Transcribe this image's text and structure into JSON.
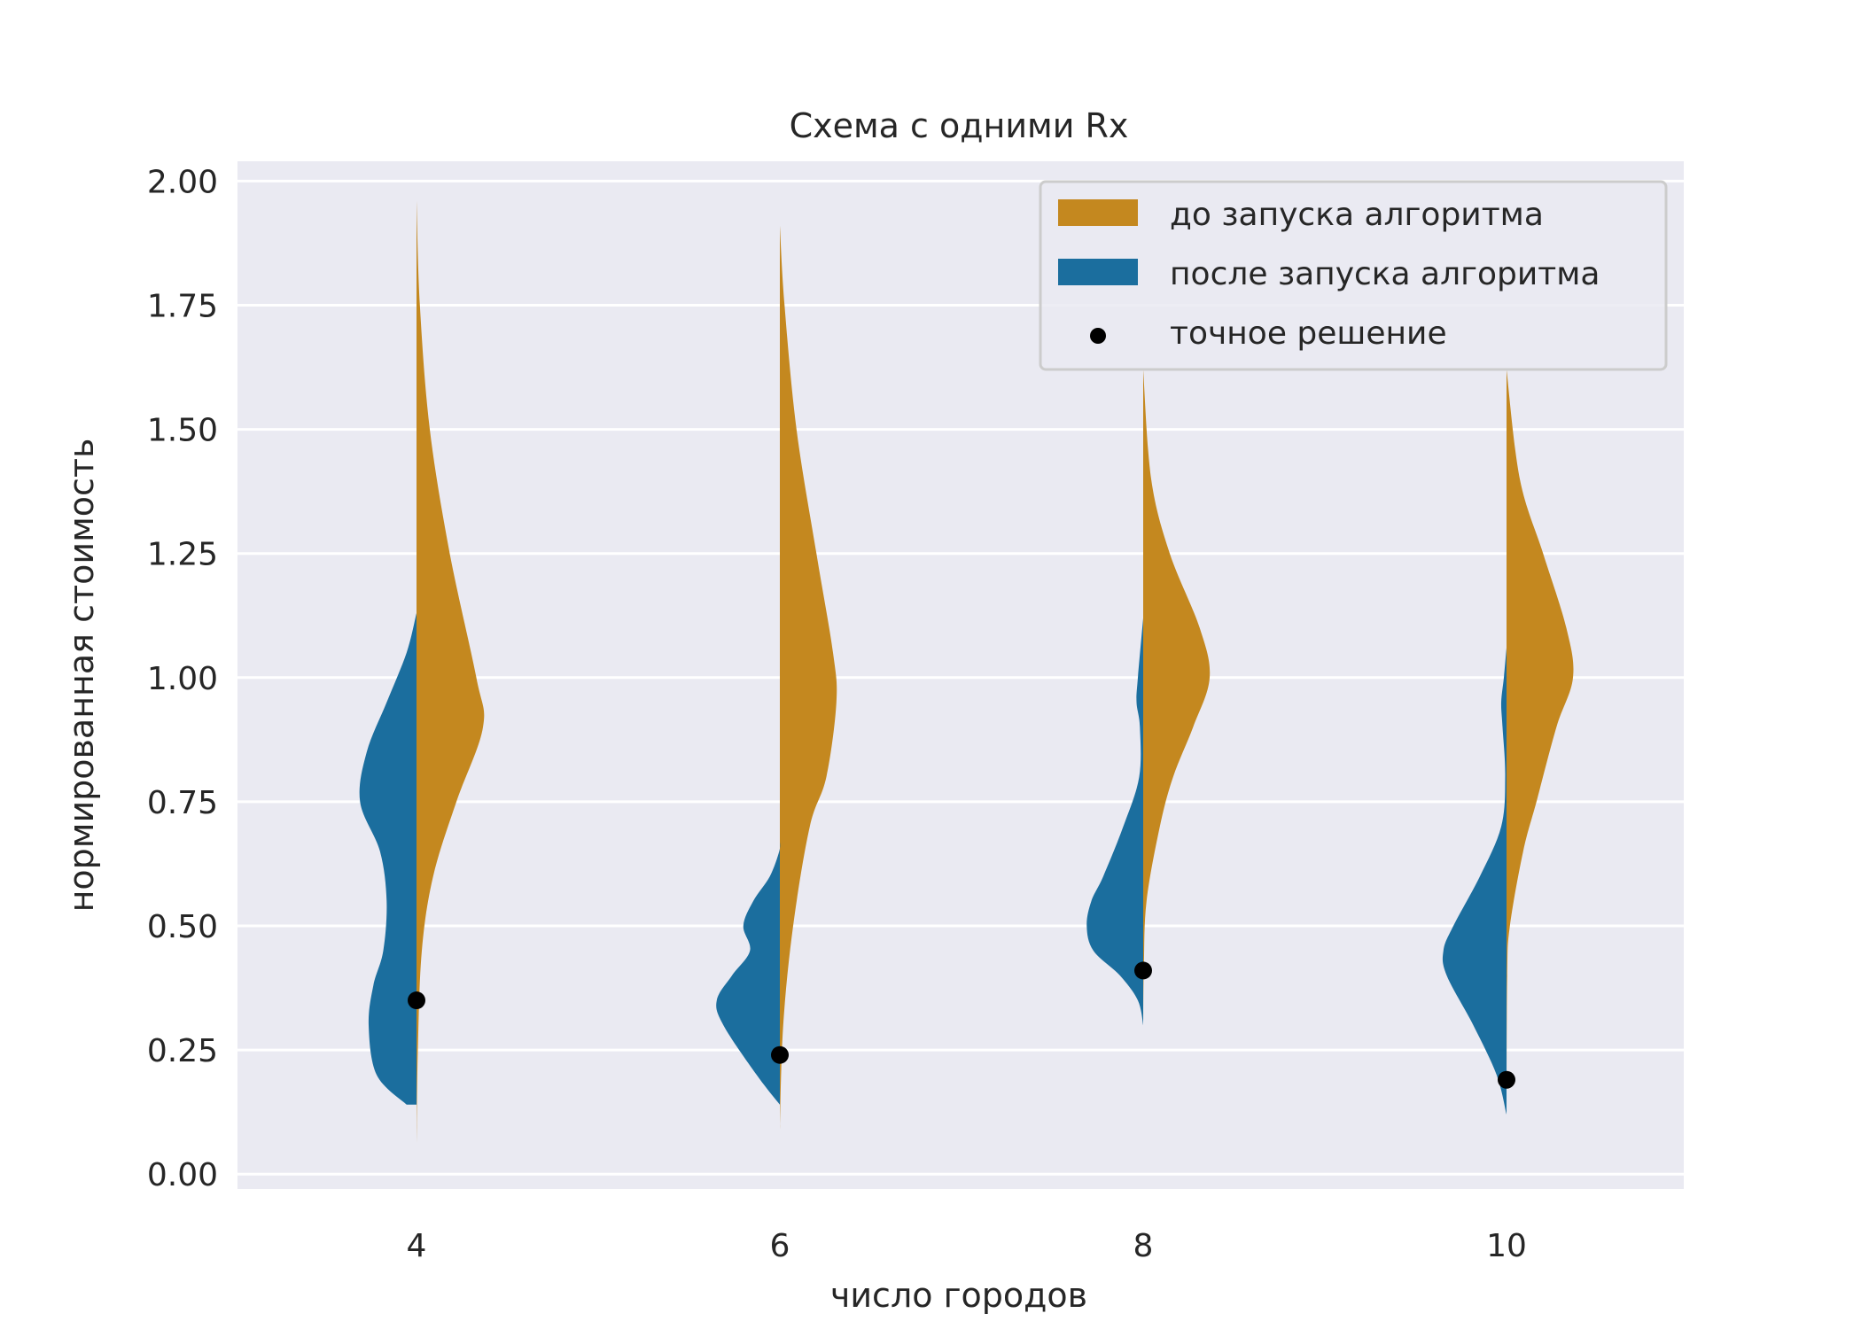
{
  "chart_data": {
    "type": "violin",
    "title": "Схема с одними Rx",
    "xlabel": "число городов",
    "ylabel": "нормированная стоимость",
    "categories": [
      "4",
      "6",
      "8",
      "10"
    ],
    "y_ticks": [
      "0.00",
      "0.25",
      "0.50",
      "0.75",
      "1.00",
      "1.25",
      "1.50",
      "1.75",
      "2.00"
    ],
    "ylim": [
      -0.03,
      2.04
    ],
    "grid": true,
    "legend_position": "top-right",
    "series": [
      {
        "name": "до запуска алгоритма",
        "side": "right",
        "color": "#c4881f",
        "distributions": [
          {
            "y": [
              0.06,
              0.25,
              0.45,
              0.6,
              0.75,
              0.9,
              1.0,
              1.25,
              1.5,
              1.75,
              1.96
            ],
            "width": [
              0,
              0.02,
              0.08,
              0.25,
              0.6,
              1.0,
              0.9,
              0.5,
              0.2,
              0.05,
              0
            ]
          },
          {
            "y": [
              0.09,
              0.3,
              0.5,
              0.7,
              0.8,
              0.95,
              1.05,
              1.25,
              1.5,
              1.75,
              1.91
            ],
            "width": [
              0,
              0.05,
              0.2,
              0.45,
              0.7,
              0.85,
              0.8,
              0.55,
              0.25,
              0.07,
              0
            ]
          },
          {
            "y": [
              0.3,
              0.42,
              0.55,
              0.7,
              0.8,
              0.9,
              1.0,
              1.1,
              1.25,
              1.4,
              1.62
            ],
            "width": [
              0,
              0.01,
              0.05,
              0.25,
              0.45,
              0.75,
              1.0,
              0.85,
              0.4,
              0.12,
              0
            ]
          },
          {
            "y": [
              0.13,
              0.4,
              0.5,
              0.65,
              0.75,
              0.9,
              1.0,
              1.1,
              1.25,
              1.4,
              1.62
            ],
            "width": [
              0,
              0.01,
              0.05,
              0.25,
              0.45,
              0.75,
              1.0,
              0.9,
              0.55,
              0.2,
              0
            ]
          }
        ]
      },
      {
        "name": "после запуска алгоритма",
        "side": "left",
        "color": "#1b6e9e",
        "distributions": [
          {
            "y": [
              0.14,
              0.2,
              0.3,
              0.38,
              0.45,
              0.55,
              0.65,
              0.75,
              0.85,
              0.95,
              1.05,
              1.13
            ],
            "width": [
              0.15,
              0.6,
              0.72,
              0.65,
              0.5,
              0.45,
              0.55,
              0.85,
              0.75,
              0.45,
              0.15,
              0
            ]
          },
          {
            "y": [
              0.14,
              0.2,
              0.3,
              0.35,
              0.4,
              0.45,
              0.5,
              0.55,
              0.6,
              0.65,
              0.67
            ],
            "width": [
              0,
              0.35,
              0.85,
              0.95,
              0.72,
              0.45,
              0.55,
              0.4,
              0.15,
              0.01,
              0
            ]
          },
          {
            "y": [
              0.3,
              0.35,
              0.4,
              0.45,
              0.5,
              0.55,
              0.6,
              0.7,
              0.8,
              0.9,
              0.95,
              1.0,
              1.12
            ],
            "width": [
              0,
              0.08,
              0.35,
              0.75,
              0.85,
              0.78,
              0.6,
              0.3,
              0.06,
              0.05,
              0.1,
              0.08,
              0
            ]
          },
          {
            "y": [
              0.12,
              0.2,
              0.3,
              0.4,
              0.45,
              0.5,
              0.6,
              0.7,
              0.8,
              0.9,
              0.95,
              1.0,
              1.06
            ],
            "width": [
              0,
              0.15,
              0.5,
              0.9,
              0.95,
              0.8,
              0.4,
              0.08,
              0.02,
              0.06,
              0.08,
              0.04,
              0
            ]
          }
        ]
      },
      {
        "name": "точное решение",
        "type": "scatter",
        "color": "#000000",
        "x": [
          "4",
          "6",
          "8",
          "10"
        ],
        "values": [
          0.35,
          0.24,
          0.41,
          0.19
        ]
      }
    ]
  }
}
